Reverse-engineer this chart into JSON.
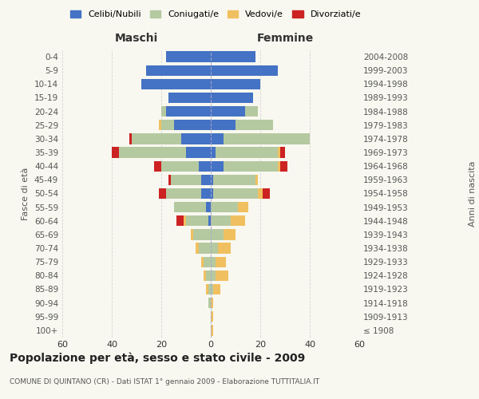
{
  "age_groups": [
    "100+",
    "95-99",
    "90-94",
    "85-89",
    "80-84",
    "75-79",
    "70-74",
    "65-69",
    "60-64",
    "55-59",
    "50-54",
    "45-49",
    "40-44",
    "35-39",
    "30-34",
    "25-29",
    "20-24",
    "15-19",
    "10-14",
    "5-9",
    "0-4"
  ],
  "years_right": [
    "≤ 1908",
    "1909-1913",
    "1914-1918",
    "1919-1923",
    "1924-1928",
    "1929-1933",
    "1934-1938",
    "1939-1943",
    "1944-1948",
    "1949-1953",
    "1954-1958",
    "1959-1963",
    "1964-1968",
    "1969-1973",
    "1974-1978",
    "1979-1983",
    "1984-1988",
    "1989-1993",
    "1994-1998",
    "1999-2003",
    "2004-2008"
  ],
  "maschi": {
    "celibe": [
      0,
      0,
      0,
      0,
      0,
      0,
      0,
      0,
      1,
      2,
      4,
      4,
      5,
      10,
      12,
      15,
      18,
      17,
      28,
      26,
      18
    ],
    "coniugato": [
      0,
      0,
      1,
      1,
      2,
      3,
      5,
      7,
      9,
      13,
      14,
      12,
      15,
      27,
      20,
      5,
      2,
      0,
      0,
      0,
      0
    ],
    "vedovo": [
      0,
      0,
      0,
      1,
      1,
      1,
      1,
      1,
      1,
      0,
      0,
      0,
      0,
      0,
      0,
      1,
      0,
      0,
      0,
      0,
      0
    ],
    "divorziato": [
      0,
      0,
      0,
      0,
      0,
      0,
      0,
      0,
      3,
      0,
      3,
      1,
      3,
      3,
      1,
      0,
      0,
      0,
      0,
      0,
      0
    ]
  },
  "femmine": {
    "nubile": [
      0,
      0,
      0,
      0,
      0,
      0,
      0,
      0,
      0,
      0,
      1,
      1,
      5,
      2,
      5,
      10,
      14,
      17,
      20,
      27,
      18
    ],
    "coniugata": [
      0,
      0,
      0,
      1,
      2,
      2,
      3,
      5,
      8,
      11,
      18,
      17,
      22,
      25,
      35,
      15,
      5,
      0,
      0,
      0,
      0
    ],
    "vedova": [
      1,
      1,
      1,
      3,
      5,
      4,
      5,
      5,
      6,
      4,
      2,
      1,
      1,
      1,
      0,
      0,
      0,
      0,
      0,
      0,
      0
    ],
    "divorziata": [
      0,
      0,
      0,
      0,
      0,
      0,
      0,
      0,
      0,
      0,
      3,
      0,
      3,
      2,
      0,
      0,
      0,
      0,
      0,
      0,
      0
    ]
  },
  "colors": {
    "celibe": "#4472c4",
    "coniugato": "#b5c9a0",
    "vedovo": "#f0c060",
    "divorziato": "#cc2222"
  },
  "legend_labels": [
    "Celibi/Nubili",
    "Coniugati/e",
    "Vedovi/e",
    "Divorziati/e"
  ],
  "xlim": 60,
  "title": "Popolazione per età, sesso e stato civile - 2009",
  "subtitle": "COMUNE DI QUINTANO (CR) - Dati ISTAT 1° gennaio 2009 - Elaborazione TUTTITALIA.IT",
  "ylabel_left": "Fasce di età",
  "ylabel_right": "Anni di nascita",
  "xlabel_maschi": "Maschi",
  "xlabel_femmine": "Femmine",
  "bg_color": "#f8f8f0"
}
